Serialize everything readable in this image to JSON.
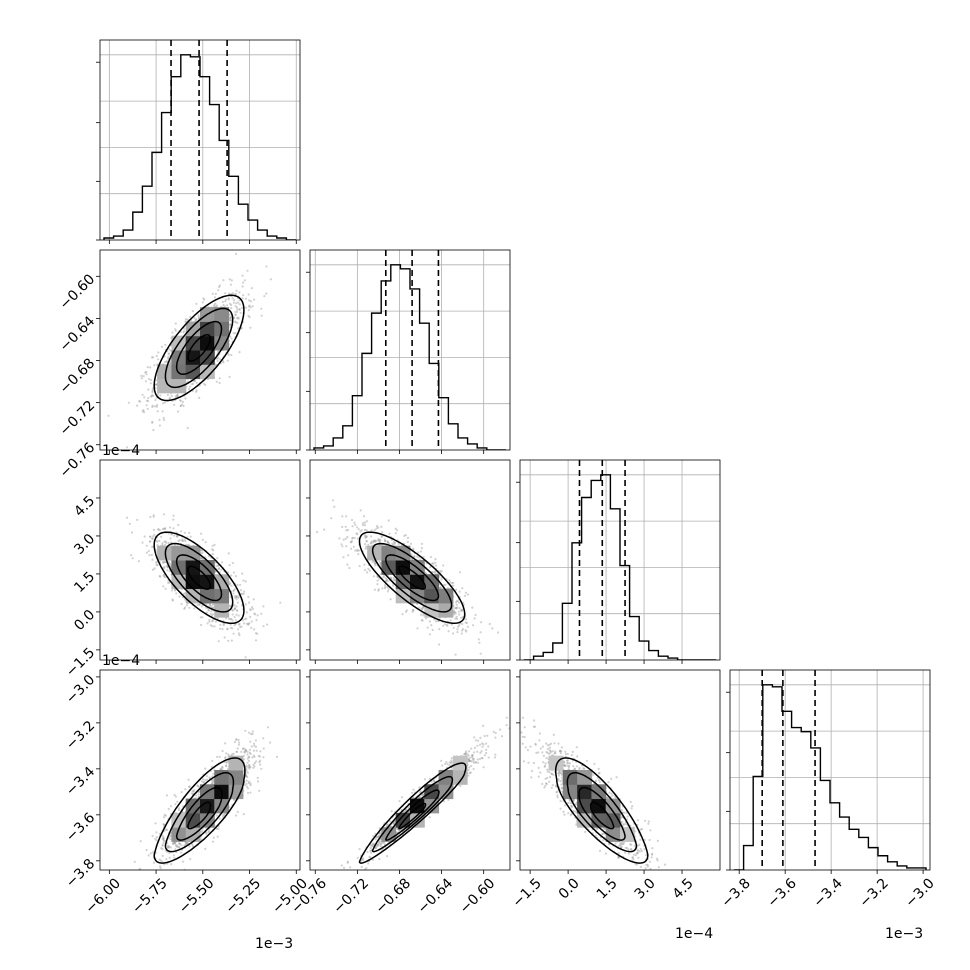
{
  "chart_data": {
    "type": "corner",
    "n_params": 4,
    "axes": [
      {
        "range": [
          -6.05,
          -4.98
        ],
        "ticks": [
          -6.0,
          -5.75,
          -5.5,
          -5.25,
          -5.0
        ],
        "tick_labels": [
          "−6.00",
          "−5.75",
          "−5.50",
          "−5.25",
          "−5.00"
        ],
        "offset_label": "1e−3",
        "quantiles": [
          -5.67,
          -5.52,
          -5.37
        ]
      },
      {
        "range": [
          -0.765,
          -0.575
        ],
        "ticks": [
          -0.76,
          -0.72,
          -0.68,
          -0.64,
          -0.6
        ],
        "tick_labels": [
          "−0.76",
          "−0.72",
          "−0.68",
          "−0.64",
          "−0.60"
        ],
        "offset_label": "1e−4",
        "quantiles": [
          -0.693,
          -0.668,
          -0.643
        ]
      },
      {
        "range": [
          -1.9,
          6.0
        ],
        "ticks": [
          -1.5,
          0.0,
          1.5,
          3.0,
          4.5
        ],
        "tick_labels": [
          "−1.5",
          "0.0",
          "1.5",
          "3.0",
          "4.5"
        ],
        "offset_label": "1e−4",
        "quantiles": [
          0.45,
          1.35,
          2.25
        ]
      },
      {
        "range": [
          -3.84,
          -2.97
        ],
        "ticks": [
          -3.8,
          -3.6,
          -3.4,
          -3.2,
          -3.0
        ],
        "tick_labels": [
          "−3.8",
          "−3.6",
          "−3.4",
          "−3.2",
          "−3.0"
        ],
        "offset_label": "1e−3",
        "quantiles": [
          -3.7,
          -3.61,
          -3.47
        ]
      }
    ],
    "histograms": [
      {
        "counts": [
          1,
          2,
          5,
          14,
          27,
          44,
          64,
          82,
          93,
          92,
          82,
          68,
          50,
          32,
          18,
          10,
          5,
          2,
          1,
          0
        ]
      },
      {
        "counts": [
          1,
          2,
          6,
          12,
          27,
          48,
          68,
          84,
          92,
          90,
          80,
          63,
          43,
          26,
          13,
          6,
          3,
          1,
          0,
          0
        ]
      },
      {
        "counts": [
          0,
          2,
          4,
          9,
          30,
          62,
          86,
          95,
          98,
          80,
          50,
          23,
          10,
          5,
          2,
          1,
          0,
          0,
          0,
          0
        ]
      },
      {
        "counts": [
          0,
          12,
          46,
          91,
          90,
          78,
          70,
          68,
          60,
          44,
          33,
          26,
          20,
          16,
          11,
          7,
          4,
          2,
          1,
          1
        ]
      }
    ],
    "pairs": [
      {
        "i": 1,
        "j": 0,
        "mean": [
          -5.52,
          -0.668
        ],
        "sd": [
          0.12,
          0.025
        ],
        "rho": 0.72,
        "skew": 0
      },
      {
        "i": 2,
        "j": 0,
        "mean": [
          -5.52,
          1.35
        ],
        "sd": [
          0.12,
          0.9
        ],
        "rho": -0.72,
        "skew": 0
      },
      {
        "i": 2,
        "j": 1,
        "mean": [
          -0.668,
          1.35
        ],
        "sd": [
          0.025,
          0.9
        ],
        "rho": -0.8,
        "skew": 0
      },
      {
        "i": 3,
        "j": 0,
        "mean": [
          -5.52,
          -3.61
        ],
        "sd": [
          0.12,
          0.1
        ],
        "rho": 0.82,
        "skew": 1
      },
      {
        "i": 3,
        "j": 1,
        "mean": [
          -0.668,
          -3.61
        ],
        "sd": [
          0.025,
          0.1
        ],
        "rho": 0.97,
        "skew": 1
      },
      {
        "i": 3,
        "j": 2,
        "mean": [
          1.35,
          -3.61
        ],
        "sd": [
          0.9,
          0.1
        ],
        "rho": -0.82,
        "skew": 1
      }
    ],
    "grid": true
  }
}
